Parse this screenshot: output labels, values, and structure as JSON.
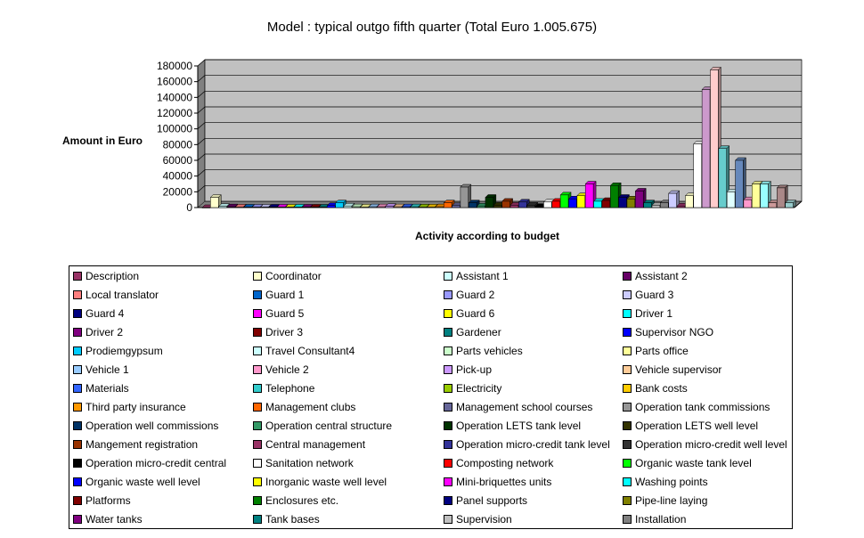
{
  "chart_data": {
    "type": "bar",
    "title": "Model : typical outgo fifth quarter (Total Euro 1.005.675)",
    "xlabel": "Activity according to budget",
    "ylabel": "Amount in Euro",
    "ylim": [
      0,
      180000
    ],
    "yticks": [
      0,
      20000,
      40000,
      60000,
      80000,
      100000,
      120000,
      140000,
      160000,
      180000
    ],
    "grid": true,
    "legend_position": "bottom",
    "series": [
      {
        "name": "Description",
        "color": "#993366",
        "value": 0
      },
      {
        "name": "Coordinator",
        "color": "#FFFFCC",
        "value": 13000
      },
      {
        "name": "Assistant 1",
        "color": "#CCFFFF",
        "value": 1500
      },
      {
        "name": "Assistant 2",
        "color": "#660066",
        "value": 1000
      },
      {
        "name": "Local translator",
        "color": "#FF8080",
        "value": 800
      },
      {
        "name": "Guard 1",
        "color": "#0066CC",
        "value": 600
      },
      {
        "name": "Guard 2",
        "color": "#9999FF",
        "value": 600
      },
      {
        "name": "Guard 3",
        "color": "#CCCCFF",
        "value": 600
      },
      {
        "name": "Guard 4",
        "color": "#000080",
        "value": 600
      },
      {
        "name": "Guard 5",
        "color": "#FF00FF",
        "value": 600
      },
      {
        "name": "Guard 6",
        "color": "#FFFF00",
        "value": 600
      },
      {
        "name": "Driver 1",
        "color": "#00FFFF",
        "value": 600
      },
      {
        "name": "Driver 2",
        "color": "#800080",
        "value": 600
      },
      {
        "name": "Driver 3",
        "color": "#800000",
        "value": 600
      },
      {
        "name": "Gardener",
        "color": "#008080",
        "value": 600
      },
      {
        "name": "Supervisor NGO",
        "color": "#0000FF",
        "value": 2500
      },
      {
        "name": "Prodiemgypsum",
        "color": "#00CCFF",
        "value": 6000
      },
      {
        "name": "Travel Consultant4",
        "color": "#CCFFFF",
        "value": 2000
      },
      {
        "name": "Parts vehicles",
        "color": "#CCFFCC",
        "value": 1000
      },
      {
        "name": "Parts office",
        "color": "#FFFF99",
        "value": 800
      },
      {
        "name": "Vehicle 1",
        "color": "#99CCFF",
        "value": 1000
      },
      {
        "name": "Vehicle 2",
        "color": "#FF99CC",
        "value": 1000
      },
      {
        "name": "Pick-up",
        "color": "#CC99FF",
        "value": 1500
      },
      {
        "name": "Vehicle supervisor",
        "color": "#FFCC99",
        "value": 1000
      },
      {
        "name": "Materials",
        "color": "#3366FF",
        "value": 1000
      },
      {
        "name": "Telephone",
        "color": "#33CCCC",
        "value": 1000
      },
      {
        "name": "Electricity",
        "color": "#99CC00",
        "value": 800
      },
      {
        "name": "Bank costs",
        "color": "#FFCC00",
        "value": 800
      },
      {
        "name": "Third party insurance",
        "color": "#FF9900",
        "value": 1000
      },
      {
        "name": "Management clubs",
        "color": "#FF6600",
        "value": 6000
      },
      {
        "name": "Management school courses",
        "color": "#666699",
        "value": 2500
      },
      {
        "name": "Operation tank commissions",
        "color": "#969696",
        "value": 26000
      },
      {
        "name": "Operation well commissions",
        "color": "#003366",
        "value": 6000
      },
      {
        "name": "Operation central structure",
        "color": "#339966",
        "value": 2000
      },
      {
        "name": "Operation LETS tank level",
        "color": "#003300",
        "value": 13000
      },
      {
        "name": "Operation LETS well level",
        "color": "#333300",
        "value": 3000
      },
      {
        "name": "Mangement registration",
        "color": "#993300",
        "value": 8000
      },
      {
        "name": "Central management",
        "color": "#993366",
        "value": 3000
      },
      {
        "name": "Operation micro-credit tank level",
        "color": "#333399",
        "value": 7000
      },
      {
        "name": "Operation micro-credit well level",
        "color": "#333333",
        "value": 3000
      },
      {
        "name": "Operation micro-credit central",
        "color": "#000000",
        "value": 1500
      },
      {
        "name": "Sanitation network",
        "color": "#FFFFFF",
        "value": 7000
      },
      {
        "name": "Composting network",
        "color": "#FF0000",
        "value": 8000
      },
      {
        "name": "Organic waste tank level",
        "color": "#00FF00",
        "value": 16000
      },
      {
        "name": "Organic waste well level",
        "color": "#0000FF",
        "value": 11000
      },
      {
        "name": "Inorganic waste well level",
        "color": "#FFFF00",
        "value": 15000
      },
      {
        "name": "Mini-briquettes units",
        "color": "#FF00FF",
        "value": 30000
      },
      {
        "name": "Washing points",
        "color": "#00FFFF",
        "value": 8000
      },
      {
        "name": "Platforms",
        "color": "#800000",
        "value": 9000
      },
      {
        "name": "Enclosures etc.",
        "color": "#008000",
        "value": 28000
      },
      {
        "name": "Panel supports",
        "color": "#000080",
        "value": 13000
      },
      {
        "name": "Pipe-line laying",
        "color": "#808000",
        "value": 11000
      },
      {
        "name": "Water tanks",
        "color": "#800080",
        "value": 21000
      },
      {
        "name": "Tank bases",
        "color": "#008080",
        "value": 6000
      },
      {
        "name": "Supervision",
        "color": "#C0C0C0",
        "value": 3000
      },
      {
        "name": "Installation",
        "color": "#808080",
        "value": 6000
      },
      {
        "name": "",
        "color": "#CCCCFF",
        "value": 18000
      },
      {
        "name": "",
        "color": "#993366",
        "value": 2000
      },
      {
        "name": "",
        "color": "#FFFFCC",
        "value": 15000
      },
      {
        "name": "",
        "color": "#FFFFFF",
        "value": 81000
      },
      {
        "name": "",
        "color": "#CC99CC",
        "value": 150000
      },
      {
        "name": "",
        "color": "#FFCCCC",
        "value": 175000
      },
      {
        "name": "",
        "color": "#66CCCC",
        "value": 75000
      },
      {
        "name": "",
        "color": "#E0FFFF",
        "value": 20000
      },
      {
        "name": "",
        "color": "#6688BB",
        "value": 60000
      },
      {
        "name": "",
        "color": "#FF99CC",
        "value": 10000
      },
      {
        "name": "",
        "color": "#FFFF99",
        "value": 30000
      },
      {
        "name": "",
        "color": "#99FFFF",
        "value": 30000
      },
      {
        "name": "",
        "color": "#CC9999",
        "value": 6000
      },
      {
        "name": "",
        "color": "#AA8888",
        "value": 25000
      },
      {
        "name": "",
        "color": "#99CCCC",
        "value": 6000
      }
    ]
  }
}
